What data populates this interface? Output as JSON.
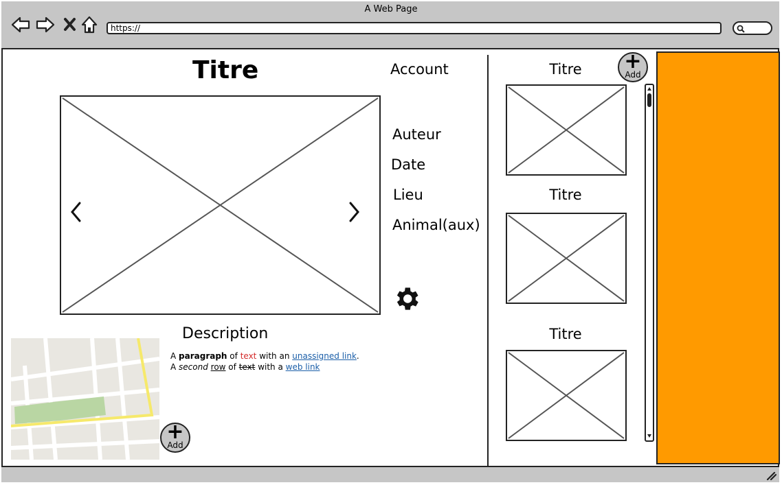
{
  "window": {
    "title": "A Web Page"
  },
  "browser": {
    "url": "https://"
  },
  "main": {
    "title": "Titre",
    "account_label": "Account",
    "meta": [
      "Auteur",
      "Date",
      "Lieu",
      "Animal(aux)"
    ],
    "description_title": "Description",
    "paragraph_row1": {
      "a": "A ",
      "b_bold": "paragraph",
      "c": " of ",
      "d_red": "text",
      "e": " with an ",
      "f_link": "unassigned link",
      "g": "."
    },
    "paragraph_row2": {
      "a": "A ",
      "b_italic": "second",
      "c": " ",
      "d_underline": "row",
      "e": " of ",
      "f_strike": "text",
      "g": " with a ",
      "h_link": "web link"
    },
    "add_label": "Add"
  },
  "sidebar": {
    "items": [
      {
        "title": "Titre"
      },
      {
        "title": "Titre"
      },
      {
        "title": "Titre"
      }
    ],
    "add_label": "Add"
  },
  "colors": {
    "accent_panel": "#ff9a00",
    "chrome": "#c6c6c6",
    "link": "#1a5ea8",
    "red_text": "#d42a2a"
  },
  "icons": [
    "back-icon",
    "forward-icon",
    "close-icon",
    "home-icon",
    "search-icon",
    "gear-icon",
    "chevron-left-icon",
    "chevron-right-icon",
    "plus-icon",
    "resize-grip-icon"
  ]
}
